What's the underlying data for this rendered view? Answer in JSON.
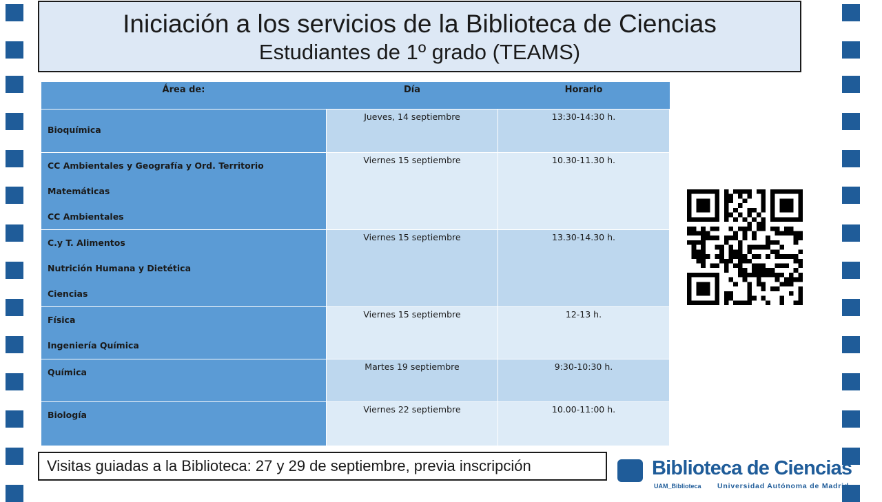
{
  "slide": {
    "title": "Iniciación a los servicios de la Biblioteca de Ciencias",
    "subtitle": "Estudiantes  de 1º grado (TEAMS)"
  },
  "table": {
    "headers": [
      "Área de:",
      "Día",
      "Horario"
    ],
    "rows": [
      {
        "areas": [
          "Bioquímica"
        ],
        "dia": "Jueves, 14 septiembre",
        "horario": "13:30-14:30 h."
      },
      {
        "areas": [
          "CC Ambientales y Geografía y Ord. Territorio",
          "Matemáticas",
          "CC Ambientales"
        ],
        "dia": "Viernes 15 septiembre",
        "horario": "10.30-11.30 h."
      },
      {
        "areas": [
          "C.y T. Alimentos",
          "Nutrición Humana y Dietética",
          "Ciencias"
        ],
        "dia": "Viernes 15 septiembre",
        "horario": "13.30-14.30 h."
      },
      {
        "areas": [
          "Física",
          "Ingeniería Química"
        ],
        "dia": "Viernes 15 septiembre",
        "horario": "12-13 h."
      },
      {
        "areas": [
          "Química"
        ],
        "dia": "Martes 19 septiembre",
        "horario": "9:30-10:30 h."
      },
      {
        "areas": [
          "Biología"
        ],
        "dia": "Viernes 22 septiembre",
        "horario": "10.00-11:00 h."
      }
    ]
  },
  "footer": {
    "visits": "Visitas guiadas a la Biblioteca: 27 y 29 de septiembre, previa inscripción"
  },
  "logo": {
    "name": "Biblioteca de Ciencias",
    "sub_left": "UAM_Biblioteca",
    "sub_right": "Universidad Autónoma de Madrid"
  },
  "icons": {
    "qr": "qr-code-icon",
    "logo_mark": "library-logo-icon"
  },
  "colors": {
    "accent": "#1f5c99",
    "header": "#5b9bd5",
    "row_dark": "#bdd7ee",
    "row_light": "#ddebf7",
    "title_bg": "#dde8f5"
  }
}
